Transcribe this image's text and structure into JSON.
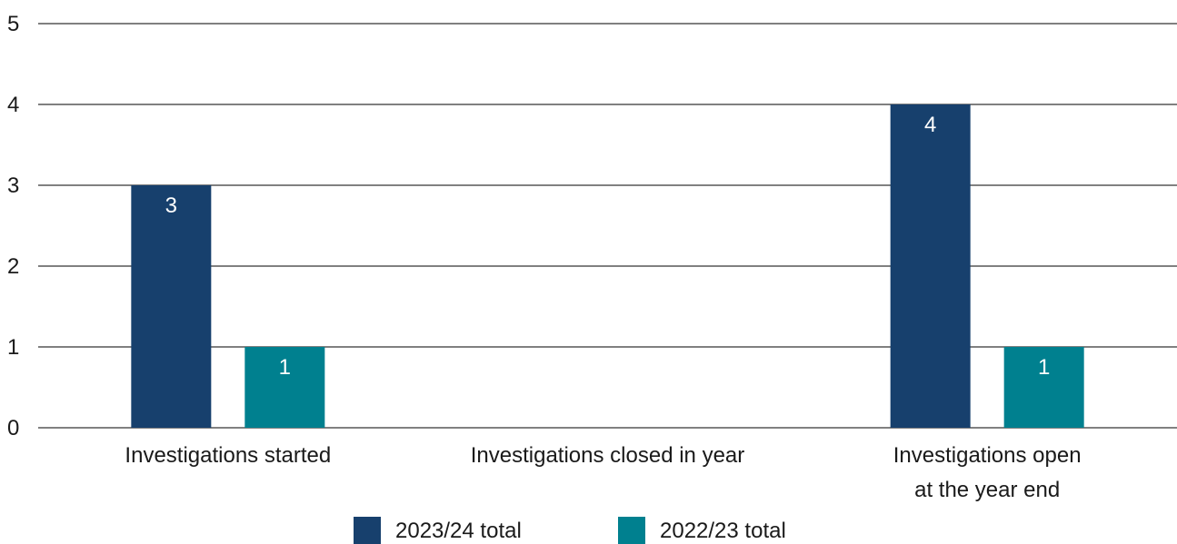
{
  "chart_data": {
    "type": "bar",
    "categories": [
      [
        "Investigations started"
      ],
      [
        "Investigations closed in year"
      ],
      [
        "Investigations open",
        "at the year end"
      ]
    ],
    "series": [
      {
        "name": "2023/24 total",
        "color": "#17406d",
        "values": [
          3,
          0,
          4
        ]
      },
      {
        "name": "2022/23 total",
        "color": "#00808f",
        "values": [
          1,
          0,
          1
        ]
      }
    ],
    "yticks": [
      "0",
      "1",
      "2",
      "3",
      "4",
      "5"
    ],
    "ylim": [
      0,
      5
    ],
    "grid": true,
    "legend": "bottom-center",
    "data_labels": true
  }
}
